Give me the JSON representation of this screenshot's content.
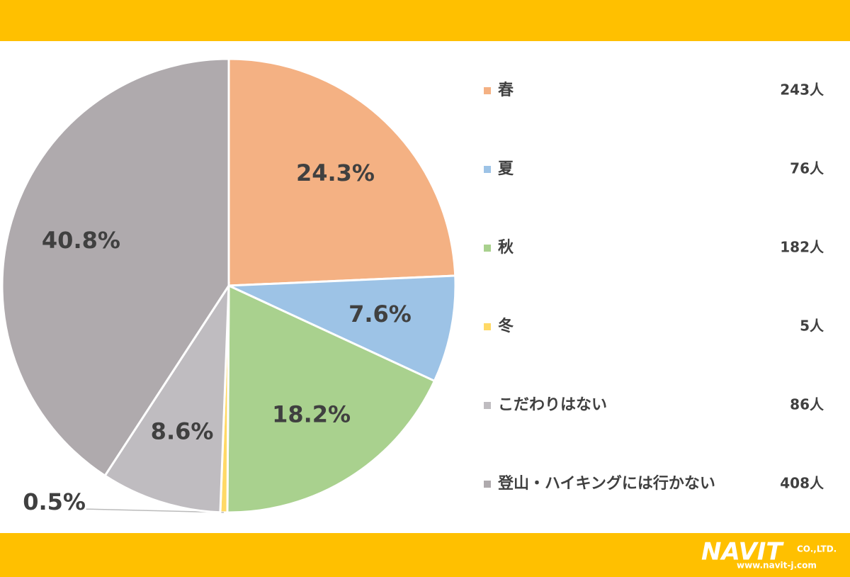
{
  "chart_data": {
    "type": "pie",
    "categories": [
      "春",
      "夏",
      "秋",
      "冬",
      "こだわりはない",
      "登山・ハイキングには行かない"
    ],
    "values": [
      24.3,
      7.6,
      18.2,
      0.5,
      8.6,
      40.8
    ],
    "value_labels": [
      "24.3%",
      "7.6%",
      "18.2%",
      "0.5%",
      "8.6%",
      "40.8%"
    ],
    "counts": [
      243,
      76,
      182,
      5,
      86,
      408
    ],
    "count_labels": [
      "243人",
      "76人",
      "182人",
      "5人",
      "86人",
      "408人"
    ],
    "colors": [
      "#F4B183",
      "#9DC3E6",
      "#A9D18E",
      "#FFD966",
      "#BFBCC0",
      "#AFAAAD"
    ],
    "legend": "right"
  },
  "logo": {
    "name": "NAVIT",
    "suffix": "CO.,LTD.",
    "url": "www.navit-j.com"
  }
}
